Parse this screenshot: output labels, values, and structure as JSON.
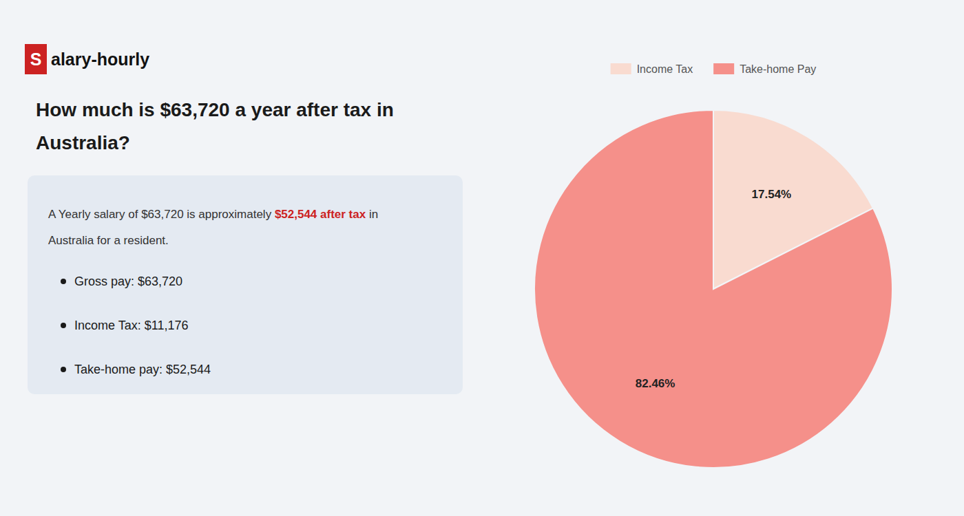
{
  "chart_data": {
    "type": "pie",
    "title": "How much is $63,720 a year after tax in Australia?",
    "annotations": [
      "S",
      "alary-hourly",
      "A Yearly salary of $63,720 is approximately ",
      "$52,544 after tax",
      " in",
      "Australia for a resident.",
      "Gross pay: $63,720",
      "Income Tax: $11,176",
      "Take-home pay: $52,544"
    ],
    "categories": [
      "Income Tax",
      "Take-home Pay"
    ],
    "values": [
      17.54,
      82.46
    ],
    "value_labels": [
      "17.54%",
      "82.46%"
    ],
    "colors": [
      "#f9dbd0",
      "#f5908a"
    ],
    "data_labels": true,
    "legend": "top"
  }
}
